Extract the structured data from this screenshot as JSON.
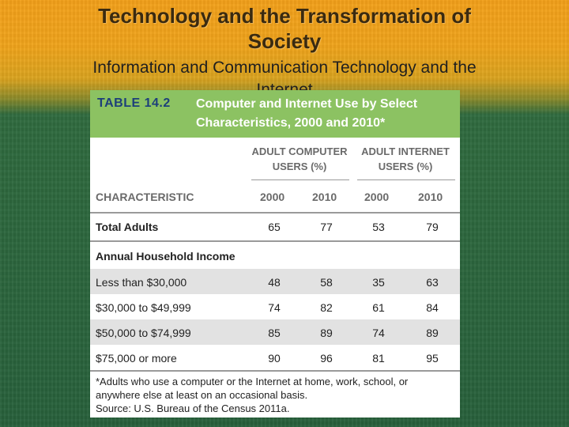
{
  "slide": {
    "title": "Technology and the Transformation of Society",
    "subtitle": "Information and Communication Technology and the Internet"
  },
  "table": {
    "number": "TABLE 14.2",
    "caption": "Computer and Internet Use by Select Characteristics, 2000 and 2010*",
    "group_headers": [
      "ADULT COMPUTER USERS (%)",
      "ADULT INTERNET USERS (%)"
    ],
    "columns": [
      "CHARACTERISTIC",
      "2000",
      "2010",
      "2000",
      "2010"
    ],
    "total_row": {
      "label": "Total Adults",
      "values": [
        "65",
        "77",
        "53",
        "79"
      ]
    },
    "section_label": "Annual Household Income",
    "rows": [
      {
        "label": "Less than $30,000",
        "values": [
          "48",
          "58",
          "35",
          "63"
        ]
      },
      {
        "label": "$30,000 to $49,999",
        "values": [
          "74",
          "82",
          "61",
          "84"
        ]
      },
      {
        "label": "$50,000 to $74,999",
        "values": [
          "85",
          "89",
          "74",
          "89"
        ]
      },
      {
        "label": "$75,000 or more",
        "values": [
          "90",
          "96",
          "81",
          "95"
        ]
      }
    ],
    "footnote": "*Adults who use a computer or the Internet at home, work, school, or anywhere else at least on an occasional basis.",
    "source": "Source: U.S. Bureau of the Census 2011a."
  },
  "colors": {
    "header_green": "#8cc262",
    "table_number_blue": "#1d3f7a",
    "background_orange": "#f3a01a",
    "background_green": "#27603b"
  }
}
